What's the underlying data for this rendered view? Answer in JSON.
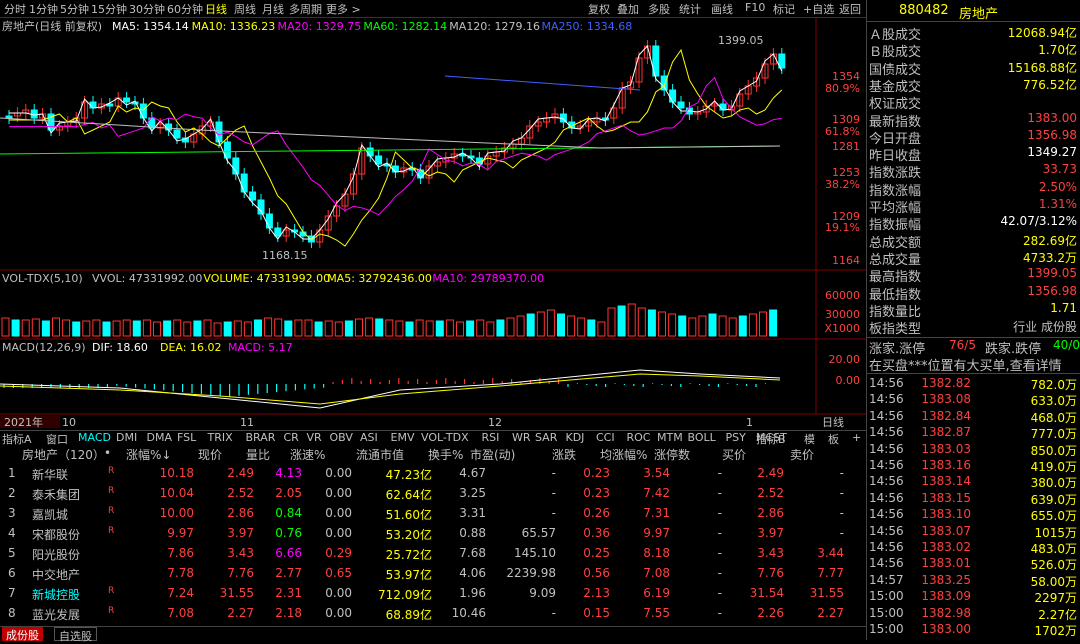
{
  "toolbar": {
    "periods": [
      "分时",
      "1分钟",
      "5分钟",
      "15分钟",
      "30分钟",
      "60分钟",
      "日线",
      "周线",
      "月线",
      "多周期",
      "更多 >"
    ],
    "active_period": "日线",
    "actions": [
      "复权",
      "叠加",
      "多股",
      "统计",
      "画线",
      "F10",
      "标记",
      "+自选",
      "返回"
    ]
  },
  "chart": {
    "name": "房地产(日线 前复权)",
    "ma_labels": [
      {
        "text": "MA5: 1354.14",
        "color": "#ffffff"
      },
      {
        "text": "MA10: 1336.23",
        "color": "#ffff00"
      },
      {
        "text": "MA20: 1329.75",
        "color": "#ff00ff"
      },
      {
        "text": "MA60: 1282.14",
        "color": "#00ff00"
      },
      {
        "text": "MA120: 1279.16",
        "color": "#c0c0c0"
      },
      {
        "text": "MA250: 1334.68",
        "color": "#4060ff"
      }
    ],
    "price_axis": [
      {
        "text": "1354",
        "color": "#ff4040"
      },
      {
        "text": "80.9%",
        "color": "#ff4040"
      },
      {
        "text": "1309",
        "color": "#ff4040"
      },
      {
        "text": "61.8%",
        "color": "#ff4040"
      },
      {
        "text": "1281",
        "color": "#ff4040"
      },
      {
        "text": "1253",
        "color": "#ff4040"
      },
      {
        "text": "38.2%",
        "color": "#ff4040"
      },
      {
        "text": "1209",
        "color": "#ff4040"
      },
      {
        "text": "19.1%",
        "color": "#ff4040"
      },
      {
        "text": "1164",
        "color": "#ff4040"
      }
    ],
    "high_label": "1399.05",
    "low_label": "1168.15",
    "vol_title": "VOL-TDX(5,10)",
    "vol_labels": [
      {
        "text": "VVOL: 47331992.00",
        "color": "#c0c0c0"
      },
      {
        "text": "VOLUME: 47331992.00",
        "color": "#ffff00"
      },
      {
        "text": "MA5: 32792436.00",
        "color": "#ffff00"
      },
      {
        "text": "MA10: 29789370.00",
        "color": "#ff00ff"
      }
    ],
    "vol_axis": [
      "60000",
      "30000",
      "X1000"
    ],
    "macd_title": "MACD(12,26,9)",
    "macd_labels": [
      {
        "text": "DIF: 18.60",
        "color": "#ffffff"
      },
      {
        "text": "DEA: 16.02",
        "color": "#ffff00"
      },
      {
        "text": "MACD: 5.17",
        "color": "#ff00ff"
      }
    ],
    "macd_axis": [
      "20.00",
      "0.00"
    ],
    "date_labels": [
      "2021年",
      "10",
      "11",
      "12",
      "1"
    ],
    "date_right": "日线"
  },
  "indicator_tabs": [
    "指标A",
    "窗口",
    "MACD",
    "DMI",
    "DMA",
    "FSL",
    "TRIX",
    "BRAR",
    "CR",
    "VR",
    "OBV",
    "ASI",
    "EMV",
    "VOL-TDX",
    "RSI",
    "WR",
    "SAR",
    "KDJ",
    "CCI",
    "ROC",
    "MTM",
    "BOLL",
    "PSY",
    "MCST"
  ],
  "active_indicator": "MACD",
  "indicator_tabs_right": [
    "指标B",
    "模",
    "板",
    "+",
    "-"
  ],
  "table": {
    "headers": [
      "房地产（120）",
      "•",
      "涨幅%↓",
      "现价",
      "量比",
      "涨速%",
      "流通市值",
      "换手%",
      "市盈(动)",
      "涨跌",
      "均涨幅%",
      "涨停数",
      "买价",
      "卖价"
    ],
    "rows": [
      {
        "idx": "1",
        "name": "新华联",
        "flag": "R",
        "pct": "10.18",
        "price": "2.49",
        "vr": "4.13",
        "spd": "0.00",
        "mcap": "47.23亿",
        "turn": "4.67",
        "pe": "-",
        "chg": "0.23",
        "avg": "3.54",
        "lim": "-",
        "bid": "2.49",
        "ask": "-"
      },
      {
        "idx": "2",
        "name": "泰禾集团",
        "flag": "R",
        "pct": "10.04",
        "price": "2.52",
        "vr": "2.05",
        "spd": "0.00",
        "mcap": "62.64亿",
        "turn": "3.25",
        "pe": "-",
        "chg": "0.23",
        "avg": "7.42",
        "lim": "-",
        "bid": "2.52",
        "ask": "-"
      },
      {
        "idx": "3",
        "name": "嘉凯城",
        "flag": "R",
        "pct": "10.00",
        "price": "2.86",
        "vr": "0.84",
        "spd": "0.00",
        "mcap": "51.60亿",
        "turn": "3.31",
        "pe": "-",
        "chg": "0.26",
        "avg": "7.31",
        "lim": "-",
        "bid": "2.86",
        "ask": "-"
      },
      {
        "idx": "4",
        "name": "宋都股份",
        "flag": "R",
        "pct": "9.97",
        "price": "3.97",
        "vr": "0.76",
        "spd": "0.00",
        "mcap": "53.20亿",
        "turn": "0.88",
        "pe": "65.57",
        "chg": "0.36",
        "avg": "9.97",
        "lim": "-",
        "bid": "3.97",
        "ask": "-"
      },
      {
        "idx": "5",
        "name": "阳光股份",
        "flag": "",
        "pct": "7.86",
        "price": "3.43",
        "vr": "6.66",
        "spd": "0.29",
        "mcap": "25.72亿",
        "turn": "7.68",
        "pe": "145.10",
        "chg": "0.25",
        "avg": "8.18",
        "lim": "-",
        "bid": "3.43",
        "ask": "3.44"
      },
      {
        "idx": "6",
        "name": "中交地产",
        "flag": "",
        "pct": "7.78",
        "price": "7.76",
        "vr": "2.77",
        "spd": "0.65",
        "mcap": "53.97亿",
        "turn": "4.06",
        "pe": "2239.98",
        "chg": "0.56",
        "avg": "7.08",
        "lim": "-",
        "bid": "7.76",
        "ask": "7.77"
      },
      {
        "idx": "7",
        "name": "新城控股",
        "flag": "R",
        "pct": "7.24",
        "price": "31.55",
        "vr": "2.31",
        "spd": "0.00",
        "mcap": "712.09亿",
        "turn": "1.96",
        "pe": "9.09",
        "chg": "2.13",
        "avg": "6.19",
        "lim": "-",
        "bid": "31.54",
        "ask": "31.55"
      },
      {
        "idx": "8",
        "name": "蓝光发展",
        "flag": "R",
        "pct": "7.08",
        "price": "2.27",
        "vr": "2.18",
        "spd": "0.00",
        "mcap": "68.89亿",
        "turn": "10.46",
        "pe": "-",
        "chg": "0.15",
        "avg": "7.55",
        "lim": "-",
        "bid": "2.26",
        "ask": "2.27"
      }
    ]
  },
  "bottom_tabs": [
    "成份股",
    "自选股"
  ],
  "right_panel": {
    "code": "880482",
    "name": "房地产",
    "stats": [
      {
        "label": "Ａ股成交",
        "value": "12068.94亿",
        "color": "#ffff00"
      },
      {
        "label": "Ｂ股成交",
        "value": "1.70亿",
        "color": "#ffff00"
      },
      {
        "label": "国债成交",
        "value": "15168.88亿",
        "color": "#ffff00"
      },
      {
        "label": "基金成交",
        "value": "776.52亿",
        "color": "#ffff00"
      },
      {
        "label": "权证成交",
        "value": "",
        "color": "#ffff00"
      },
      {
        "label": "最新指数",
        "value": "1383.00",
        "color": "#ff4040"
      },
      {
        "label": "今日开盘",
        "value": "1356.98",
        "color": "#ff4040"
      },
      {
        "label": "昨日收盘",
        "value": "1349.27",
        "color": "#ffffff"
      },
      {
        "label": "指数涨跌",
        "value": "33.73",
        "color": "#ff4040"
      },
      {
        "label": "指数涨幅",
        "value": "2.50%",
        "color": "#ff4040"
      },
      {
        "label": "平均涨幅",
        "value": "1.31%",
        "color": "#ff4040"
      },
      {
        "label": "指数振幅",
        "value": "42.07/3.12%",
        "color": "#ffffff"
      },
      {
        "label": "总成交额",
        "value": "282.69亿",
        "color": "#ffff00"
      },
      {
        "label": "总成交量",
        "value": "4733.2万",
        "color": "#ffff00"
      },
      {
        "label": "最高指数",
        "value": "1399.05",
        "color": "#ff4040"
      },
      {
        "label": "最低指数",
        "value": "1356.98",
        "color": "#ff4040"
      },
      {
        "label": "指数量比",
        "value": "1.71",
        "color": "#ffff00"
      },
      {
        "label": "板指类型",
        "value": "行业 成份股",
        "color": "#c0c0c0"
      }
    ],
    "limit_text": "涨家.涨停",
    "limit_up": "76/5",
    "limit_text2": "跌家.跌停",
    "limit_down": "40/0",
    "notice": "在买盘***位置有大买单,查看详情",
    "ticks": [
      {
        "t": "14:56",
        "p": "1382.82",
        "v": "782.0万"
      },
      {
        "t": "14:56",
        "p": "1383.08",
        "v": "633.0万"
      },
      {
        "t": "14:56",
        "p": "1382.84",
        "v": "468.0万"
      },
      {
        "t": "14:56",
        "p": "1382.87",
        "v": "777.0万"
      },
      {
        "t": "14:56",
        "p": "1383.03",
        "v": "850.0万"
      },
      {
        "t": "14:56",
        "p": "1383.16",
        "v": "419.0万"
      },
      {
        "t": "14:56",
        "p": "1383.14",
        "v": "380.0万"
      },
      {
        "t": "14:56",
        "p": "1383.15",
        "v": "639.0万"
      },
      {
        "t": "14:56",
        "p": "1383.10",
        "v": "655.0万"
      },
      {
        "t": "14:56",
        "p": "1383.07",
        "v": "1015万"
      },
      {
        "t": "14:56",
        "p": "1383.02",
        "v": "483.0万"
      },
      {
        "t": "14:56",
        "p": "1383.01",
        "v": "526.0万"
      },
      {
        "t": "14:57",
        "p": "1383.25",
        "v": "58.00万"
      },
      {
        "t": "15:00",
        "p": "1383.09",
        "v": "2297万"
      },
      {
        "t": "15:00",
        "p": "1382.98",
        "v": "2.27亿"
      },
      {
        "t": "15:00",
        "p": "1383.00",
        "v": "1702万"
      }
    ]
  },
  "colors": {
    "up": "#ff3232",
    "down": "#00ffff",
    "ma5": "#ffffff",
    "ma10": "#ffff00",
    "ma20": "#ff00ff",
    "ma60": "#00ff00",
    "ma120": "#c0c0c0",
    "ma250": "#4060ff"
  }
}
